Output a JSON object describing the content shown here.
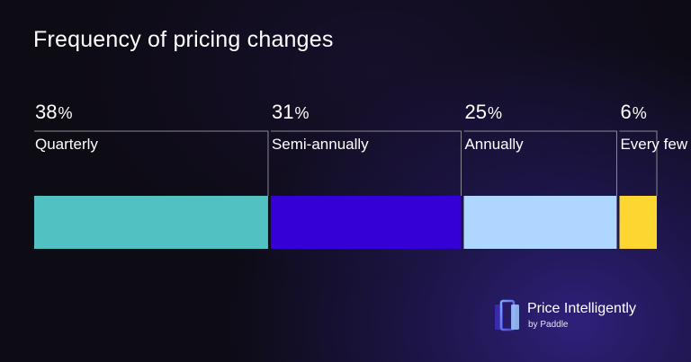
{
  "chart_data": {
    "type": "bar",
    "orientation": "horizontal-stacked",
    "title": "Frequency of pricing changes",
    "percent_symbol": "%",
    "categories": [
      "Quarterly",
      "Semi-annually",
      "Annually",
      "Every few years"
    ],
    "values": [
      38,
      31,
      25,
      6
    ],
    "colors": [
      "#52c1c1",
      "#3400d6",
      "#aed6ff",
      "#fed631"
    ]
  },
  "branding": {
    "name": "Price Intelligently",
    "sub": "by Paddle"
  }
}
